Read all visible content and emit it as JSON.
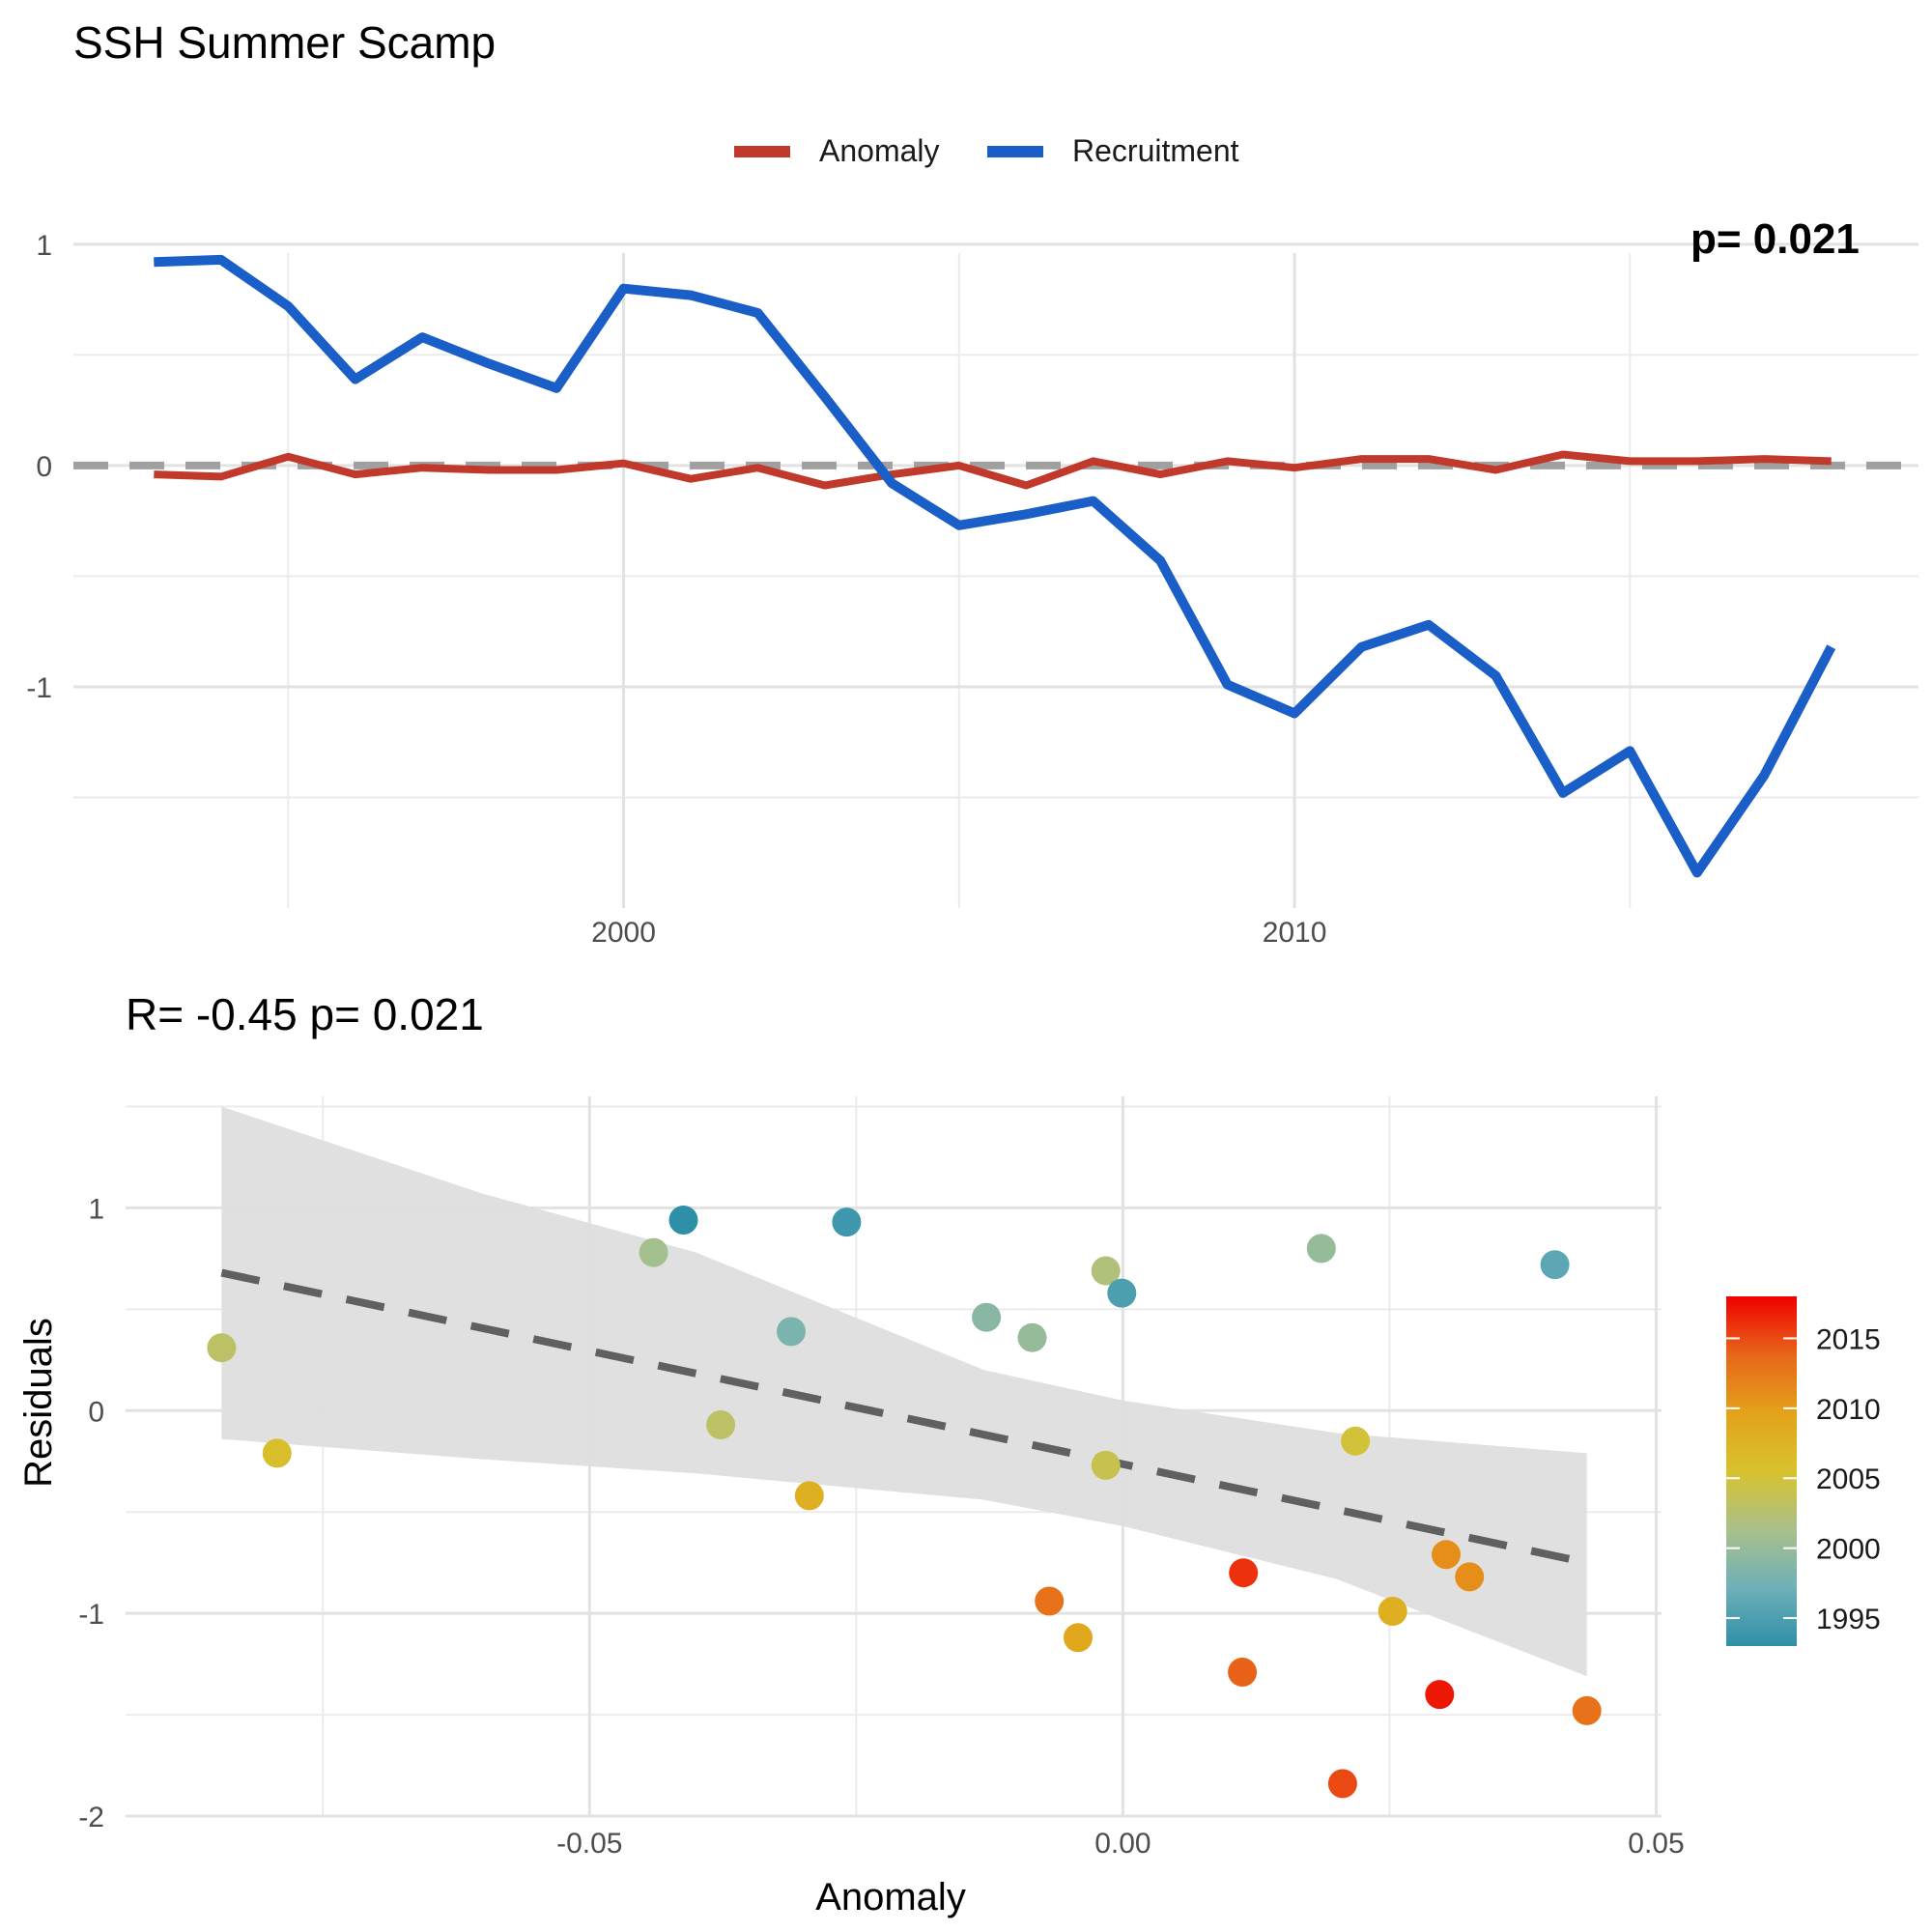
{
  "title": "SSH Summer Scamp",
  "chart_data": [
    {
      "type": "line",
      "legend": {
        "position": "top-center",
        "entries": [
          {
            "label": "Anomaly",
            "color": "#c0392b"
          },
          {
            "label": "Recruitment",
            "color": "#1a5fc7"
          }
        ]
      },
      "corner_annotation": "p= 0.021",
      "x_ticks": [
        2000,
        2010
      ],
      "y_ticks": [
        1,
        0,
        -1
      ],
      "y_tick_labels": [
        "1",
        "0",
        "-1"
      ],
      "xlim": [
        1991.8,
        2019.3
      ],
      "ylim": [
        -2.0,
        1.1
      ],
      "reference_line": {
        "y": 0,
        "style": "dashed",
        "color": "#a0a0a0"
      },
      "grid": true,
      "series": [
        {
          "name": "Anomaly",
          "color": "#c0392b",
          "x": [
            1993,
            1994,
            1995,
            1996,
            1997,
            1998,
            1999,
            2000,
            2001,
            2002,
            2003,
            2004,
            2005,
            2006,
            2007,
            2008,
            2009,
            2010,
            2011,
            2012,
            2013,
            2014,
            2015,
            2016,
            2017,
            2018
          ],
          "values": [
            -0.04,
            -0.05,
            0.04,
            -0.04,
            -0.01,
            -0.02,
            -0.02,
            0.01,
            -0.06,
            -0.01,
            -0.09,
            -0.04,
            0.0,
            -0.09,
            0.02,
            -0.04,
            0.02,
            -0.01,
            0.03,
            0.03,
            -0.02,
            0.05,
            0.02,
            0.02,
            0.03,
            0.02
          ]
        },
        {
          "name": "Recruitment",
          "color": "#1a5fc7",
          "x": [
            1993,
            1994,
            1995,
            1996,
            1997,
            1998,
            1999,
            2000,
            2001,
            2002,
            2003,
            2004,
            2005,
            2006,
            2007,
            2008,
            2009,
            2010,
            2011,
            2012,
            2013,
            2014,
            2015,
            2016,
            2017,
            2018
          ],
          "values": [
            0.92,
            0.93,
            0.72,
            0.39,
            0.58,
            0.46,
            0.35,
            0.8,
            0.77,
            0.69,
            0.31,
            -0.08,
            -0.27,
            -0.22,
            -0.16,
            -0.43,
            -0.99,
            -1.12,
            -0.82,
            -0.72,
            -0.95,
            -1.48,
            -1.29,
            -1.84,
            -1.4,
            -0.82
          ]
        }
      ]
    },
    {
      "type": "scatter",
      "title": "R= -0.45  p= 0.021",
      "xlabel": "Anomaly",
      "ylabel": "Residuals",
      "x_ticks": [
        -0.05,
        0.0,
        0.05
      ],
      "x_tick_labels": [
        "-0.05",
        "0.00",
        "0.05"
      ],
      "y_ticks": [
        1,
        0,
        -1,
        -2
      ],
      "y_tick_labels": [
        "1",
        "0",
        "-1",
        "-2"
      ],
      "xlim": [
        -0.0935,
        0.0505
      ],
      "ylim": [
        -2.0,
        1.55
      ],
      "grid": true,
      "colorbar": {
        "range": [
          1993,
          2018
        ],
        "ticks": [
          2015,
          2010,
          2005,
          2000,
          1995
        ],
        "tick_labels": [
          "2015",
          "2010",
          "2005",
          "2000",
          "1995"
        ],
        "stops": [
          "#2e8fa8",
          "#6fb0b8",
          "#a9c08a",
          "#d8c22e",
          "#e3a21a",
          "#e8661a",
          "#f00000"
        ]
      },
      "regression": {
        "x": [
          -0.0845,
          0.0435
        ],
        "y": [
          0.68,
          -0.75
        ],
        "style": "dashed",
        "color": "#606060",
        "ci_band_x": [
          -0.0845,
          -0.06,
          -0.04,
          -0.013,
          0.0,
          0.02,
          0.0435
        ],
        "ci_upper": [
          1.5,
          1.07,
          0.78,
          0.2,
          0.05,
          -0.11,
          -0.21
        ],
        "ci_lower": [
          -0.14,
          -0.24,
          -0.31,
          -0.44,
          -0.57,
          -0.83,
          -1.31
        ],
        "ci_color": "#dedede"
      },
      "points": [
        {
          "x": -0.0845,
          "y": 0.31,
          "year": 2003
        },
        {
          "x": -0.0793,
          "y": -0.21,
          "year": 2006
        },
        {
          "x": -0.044,
          "y": 0.78,
          "year": 2001
        },
        {
          "x": -0.0412,
          "y": 0.94,
          "year": 1993
        },
        {
          "x": -0.0377,
          "y": -0.07,
          "year": 2003
        },
        {
          "x": -0.0311,
          "y": 0.39,
          "year": 1998
        },
        {
          "x": -0.0294,
          "y": -0.42,
          "year": 2008
        },
        {
          "x": -0.0259,
          "y": 0.93,
          "year": 1994
        },
        {
          "x": -0.0128,
          "y": 0.46,
          "year": 1999
        },
        {
          "x": -0.0085,
          "y": 0.36,
          "year": 2000
        },
        {
          "x": -0.0069,
          "y": -0.94,
          "year": 2013
        },
        {
          "x": -0.0042,
          "y": -1.12,
          "year": 2009
        },
        {
          "x": -0.0016,
          "y": 0.69,
          "year": 2002
        },
        {
          "x": -0.0016,
          "y": -0.27,
          "year": 2004
        },
        {
          "x": -0.0001,
          "y": 0.58,
          "year": 1995
        },
        {
          "x": 0.0113,
          "y": -0.8,
          "year": 2016
        },
        {
          "x": 0.0112,
          "y": -1.29,
          "year": 2014
        },
        {
          "x": 0.0186,
          "y": 0.8,
          "year": 2000
        },
        {
          "x": 0.0206,
          "y": -1.84,
          "year": 2015
        },
        {
          "x": 0.0218,
          "y": -0.15,
          "year": 2005
        },
        {
          "x": 0.0253,
          "y": -0.99,
          "year": 2008
        },
        {
          "x": 0.0303,
          "y": -0.71,
          "year": 2011
        },
        {
          "x": 0.0297,
          "y": -1.4,
          "year": 2017
        },
        {
          "x": 0.0325,
          "y": -0.82,
          "year": 2011
        },
        {
          "x": 0.0405,
          "y": 0.72,
          "year": 1996
        },
        {
          "x": 0.0435,
          "y": -1.48,
          "year": 2013
        }
      ]
    }
  ]
}
